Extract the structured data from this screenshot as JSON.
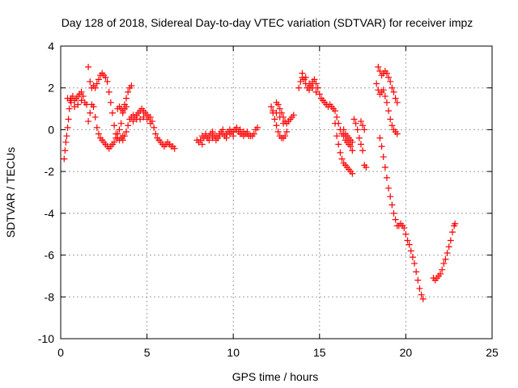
{
  "chart_data": {
    "type": "scatter",
    "title": "Day 128 of 2018, Sidereal Day-to-day VTEC variation (SDTVAR) for receiver impz",
    "xlabel": "GPS time / hours",
    "ylabel": "SDTVAR / TECUs",
    "xlim": [
      0,
      25
    ],
    "ylim": [
      -10,
      4
    ],
    "xticks": [
      "0",
      "5",
      "10",
      "15",
      "20",
      "25"
    ],
    "yticks": [
      "-10",
      "-8",
      "-6",
      "-4",
      "-2",
      "0",
      "2",
      "4"
    ],
    "grid": true,
    "marker": "plus",
    "color": "#ff0000",
    "series": [
      {
        "name": "SDTVAR",
        "points": [
          [
            0.2,
            -1.4
          ],
          [
            0.25,
            -1.0
          ],
          [
            0.3,
            -0.6
          ],
          [
            0.35,
            -0.3
          ],
          [
            0.4,
            0.1
          ],
          [
            0.45,
            0.5
          ],
          [
            0.5,
            1.0
          ],
          [
            0.55,
            1.4
          ],
          [
            0.6,
            1.5
          ],
          [
            0.7,
            1.6
          ],
          [
            0.8,
            1.4
          ],
          [
            0.9,
            1.5
          ],
          [
            1.0,
            1.6
          ],
          [
            1.1,
            1.7
          ],
          [
            1.2,
            1.8
          ],
          [
            1.3,
            1.6
          ],
          [
            1.4,
            1.3
          ],
          [
            1.5,
            1.2
          ],
          [
            0.4,
            1.5
          ],
          [
            0.6,
            1.3
          ],
          [
            0.8,
            1.1
          ],
          [
            1.0,
            1.2
          ],
          [
            1.2,
            1.4
          ],
          [
            1.6,
            3.0
          ],
          [
            1.7,
            2.3
          ],
          [
            1.8,
            2.0
          ],
          [
            1.9,
            2.1
          ],
          [
            2.0,
            2.0
          ],
          [
            2.1,
            2.2
          ],
          [
            2.2,
            2.4
          ],
          [
            2.3,
            2.6
          ],
          [
            2.4,
            2.7
          ],
          [
            2.5,
            2.6
          ],
          [
            2.6,
            2.5
          ],
          [
            2.7,
            2.3
          ],
          [
            2.8,
            1.8
          ],
          [
            2.9,
            1.3
          ],
          [
            3.0,
            0.8
          ],
          [
            3.1,
            0.2
          ],
          [
            3.2,
            -0.2
          ],
          [
            3.3,
            -0.4
          ],
          [
            3.4,
            -0.5
          ],
          [
            3.5,
            -0.4
          ],
          [
            3.6,
            -0.3
          ],
          [
            1.6,
            0.4
          ],
          [
            1.7,
            0.8
          ],
          [
            1.8,
            1.2
          ],
          [
            1.9,
            1.1
          ],
          [
            2.0,
            0.6
          ],
          [
            2.1,
            0.1
          ],
          [
            2.2,
            -0.2
          ],
          [
            2.3,
            -0.4
          ],
          [
            2.4,
            -0.5
          ],
          [
            2.5,
            -0.6
          ],
          [
            2.6,
            -0.7
          ],
          [
            2.7,
            -0.8
          ],
          [
            2.8,
            -0.9
          ],
          [
            2.9,
            -0.8
          ],
          [
            3.0,
            -0.7
          ],
          [
            3.1,
            -0.6
          ],
          [
            3.2,
            -0.4
          ],
          [
            3.3,
            -0.2
          ],
          [
            3.4,
            0.0
          ],
          [
            3.3,
            1.0
          ],
          [
            3.4,
            1.1
          ],
          [
            3.5,
            1.0
          ],
          [
            3.6,
            0.9
          ],
          [
            3.7,
            1.0
          ],
          [
            3.8,
            1.1
          ],
          [
            3.5,
            0.3
          ],
          [
            3.6,
            0.8
          ],
          [
            3.7,
            1.2
          ],
          [
            3.8,
            1.5
          ],
          [
            3.9,
            1.8
          ],
          [
            4.0,
            2.0
          ],
          [
            4.1,
            2.1
          ],
          [
            3.6,
            -0.5
          ],
          [
            3.7,
            -0.3
          ],
          [
            3.8,
            -0.1
          ],
          [
            3.9,
            0.2
          ],
          [
            4.0,
            0.5
          ],
          [
            4.1,
            0.6
          ],
          [
            4.2,
            0.7
          ],
          [
            4.3,
            0.6
          ],
          [
            4.4,
            0.7
          ],
          [
            4.5,
            0.8
          ],
          [
            4.6,
            0.9
          ],
          [
            4.7,
            1.0
          ],
          [
            4.8,
            0.9
          ],
          [
            4.9,
            0.8
          ],
          [
            5.0,
            0.7
          ],
          [
            5.1,
            0.6
          ],
          [
            5.2,
            0.6
          ],
          [
            5.3,
            0.4
          ],
          [
            5.4,
            0.1
          ],
          [
            5.5,
            -0.2
          ],
          [
            5.6,
            -0.4
          ],
          [
            5.7,
            -0.5
          ],
          [
            5.8,
            -0.6
          ],
          [
            5.9,
            -0.7
          ],
          [
            6.0,
            -0.8
          ],
          [
            6.1,
            -0.7
          ],
          [
            6.2,
            -0.6
          ],
          [
            6.3,
            -0.7
          ],
          [
            6.4,
            -0.8
          ],
          [
            6.5,
            -0.8
          ],
          [
            6.6,
            -0.9
          ],
          [
            4.2,
            0.4
          ],
          [
            4.4,
            0.5
          ],
          [
            4.6,
            0.5
          ],
          [
            4.8,
            0.6
          ],
          [
            5.0,
            0.5
          ],
          [
            5.2,
            0.3
          ],
          [
            7.9,
            -0.5
          ],
          [
            8.0,
            -0.6
          ],
          [
            8.1,
            -0.5
          ],
          [
            8.2,
            -0.7
          ],
          [
            8.3,
            -0.4
          ],
          [
            8.4,
            -0.3
          ],
          [
            8.5,
            -0.4
          ],
          [
            8.6,
            -0.3
          ],
          [
            8.7,
            -0.2
          ],
          [
            8.8,
            -0.4
          ],
          [
            8.9,
            -0.3
          ],
          [
            9.0,
            -0.3
          ],
          [
            9.1,
            -0.4
          ],
          [
            9.2,
            -0.2
          ],
          [
            9.3,
            -0.1
          ],
          [
            9.4,
            -0.2
          ],
          [
            9.5,
            -0.3
          ],
          [
            9.6,
            -0.2
          ],
          [
            9.7,
            -0.1
          ],
          [
            9.8,
            -0.2
          ],
          [
            9.9,
            -0.1
          ],
          [
            10.0,
            -0.1
          ],
          [
            10.1,
            0.0
          ],
          [
            10.2,
            0.0
          ],
          [
            10.3,
            -0.1
          ],
          [
            10.4,
            -0.2
          ],
          [
            10.5,
            -0.2
          ],
          [
            10.6,
            -0.1
          ],
          [
            10.7,
            -0.2
          ],
          [
            10.8,
            -0.2
          ],
          [
            10.9,
            -0.3
          ],
          [
            11.0,
            -0.3
          ],
          [
            11.1,
            -0.3
          ],
          [
            11.2,
            -0.2
          ],
          [
            11.3,
            0.0
          ],
          [
            11.4,
            0.1
          ],
          [
            8.2,
            -0.3
          ],
          [
            8.4,
            -0.2
          ],
          [
            8.6,
            -0.5
          ],
          [
            8.8,
            -0.1
          ],
          [
            9.0,
            -0.5
          ],
          [
            9.2,
            -0.3
          ],
          [
            9.4,
            0.0
          ],
          [
            9.6,
            -0.4
          ],
          [
            9.8,
            0.0
          ],
          [
            10.0,
            -0.3
          ],
          [
            10.2,
            0.1
          ],
          [
            10.4,
            0.0
          ],
          [
            10.6,
            -0.3
          ],
          [
            10.8,
            -0.1
          ],
          [
            12.2,
            1.1
          ],
          [
            12.3,
            0.8
          ],
          [
            12.4,
            0.5
          ],
          [
            12.5,
            0.2
          ],
          [
            12.6,
            -0.1
          ],
          [
            12.7,
            -0.3
          ],
          [
            12.8,
            -0.4
          ],
          [
            12.9,
            -0.4
          ],
          [
            13.0,
            -0.3
          ],
          [
            13.1,
            -0.1
          ],
          [
            12.5,
            1.3
          ],
          [
            12.6,
            1.2
          ],
          [
            12.7,
            1.0
          ],
          [
            12.8,
            0.8
          ],
          [
            12.9,
            0.6
          ],
          [
            13.0,
            0.4
          ],
          [
            13.1,
            0.3
          ],
          [
            13.2,
            0.4
          ],
          [
            13.3,
            0.5
          ],
          [
            13.4,
            0.6
          ],
          [
            13.5,
            0.7
          ],
          [
            12.3,
            0.9
          ],
          [
            12.5,
            0.8
          ],
          [
            12.7,
            0.6
          ],
          [
            12.9,
            0.3
          ],
          [
            13.8,
            2.0
          ],
          [
            13.9,
            2.3
          ],
          [
            14.0,
            2.5
          ],
          [
            14.1,
            2.4
          ],
          [
            14.2,
            2.2
          ],
          [
            14.3,
            2.0
          ],
          [
            14.4,
            1.9
          ],
          [
            14.5,
            2.1
          ],
          [
            14.6,
            2.3
          ],
          [
            14.7,
            2.4
          ],
          [
            14.8,
            2.2
          ],
          [
            14.9,
            2.0
          ],
          [
            15.0,
            1.7
          ],
          [
            15.1,
            1.5
          ],
          [
            15.2,
            1.4
          ],
          [
            15.3,
            1.3
          ],
          [
            15.4,
            1.2
          ],
          [
            15.5,
            1.1
          ],
          [
            15.6,
            1.2
          ],
          [
            15.7,
            1.1
          ],
          [
            15.8,
            1.0
          ],
          [
            15.9,
            0.9
          ],
          [
            16.0,
            0.6
          ],
          [
            16.1,
            0.3
          ],
          [
            16.2,
            0.0
          ],
          [
            16.3,
            -0.2
          ],
          [
            16.4,
            -0.3
          ],
          [
            16.5,
            -0.5
          ],
          [
            16.6,
            -0.6
          ],
          [
            16.7,
            -0.7
          ],
          [
            16.8,
            -0.8
          ],
          [
            16.9,
            -1.0
          ],
          [
            14.0,
            2.7
          ],
          [
            14.2,
            2.5
          ],
          [
            14.4,
            2.2
          ],
          [
            14.6,
            2.0
          ],
          [
            14.8,
            1.8
          ],
          [
            15.9,
            0.3
          ],
          [
            16.0,
            -0.3
          ],
          [
            16.1,
            -0.7
          ],
          [
            16.2,
            -1.1
          ],
          [
            16.3,
            -1.4
          ],
          [
            16.4,
            -1.6
          ],
          [
            16.5,
            -1.7
          ],
          [
            16.6,
            -1.8
          ],
          [
            16.7,
            -1.9
          ],
          [
            16.8,
            -2.0
          ],
          [
            16.9,
            -2.1
          ],
          [
            16.4,
            0.0
          ],
          [
            16.5,
            -0.2
          ],
          [
            16.6,
            -0.3
          ],
          [
            16.7,
            -0.4
          ],
          [
            16.8,
            -0.5
          ],
          [
            16.9,
            -0.6
          ],
          [
            17.0,
            0.5
          ],
          [
            17.1,
            0.3
          ],
          [
            17.2,
            0.0
          ],
          [
            17.3,
            -0.4
          ],
          [
            17.4,
            -0.7
          ],
          [
            17.5,
            -1.0
          ],
          [
            17.4,
            0.4
          ],
          [
            17.5,
            0.2
          ],
          [
            17.6,
            0.0
          ],
          [
            17.6,
            -1.7
          ],
          [
            17.7,
            -1.8
          ],
          [
            18.4,
            3.0
          ],
          [
            18.5,
            2.8
          ],
          [
            18.6,
            2.6
          ],
          [
            18.7,
            2.7
          ],
          [
            18.8,
            2.8
          ],
          [
            18.9,
            2.7
          ],
          [
            19.0,
            2.5
          ],
          [
            19.1,
            2.3
          ],
          [
            19.2,
            2.0
          ],
          [
            19.3,
            1.8
          ],
          [
            19.4,
            1.5
          ],
          [
            19.5,
            1.3
          ],
          [
            18.3,
            2.2
          ],
          [
            18.4,
            1.9
          ],
          [
            18.5,
            1.7
          ],
          [
            18.6,
            1.8
          ],
          [
            18.7,
            1.9
          ],
          [
            18.8,
            1.6
          ],
          [
            18.9,
            1.3
          ],
          [
            19.0,
            0.9
          ],
          [
            19.1,
            0.5
          ],
          [
            19.2,
            0.2
          ],
          [
            19.3,
            0.0
          ],
          [
            19.4,
            -0.1
          ],
          [
            19.5,
            -0.2
          ],
          [
            18.5,
            -0.4
          ],
          [
            18.6,
            -0.8
          ],
          [
            18.7,
            -1.3
          ],
          [
            18.8,
            -1.8
          ],
          [
            18.9,
            -2.3
          ],
          [
            19.0,
            -2.8
          ],
          [
            19.1,
            -3.2
          ],
          [
            19.2,
            -3.6
          ],
          [
            19.3,
            -4.0
          ],
          [
            19.4,
            -4.3
          ],
          [
            19.5,
            -4.6
          ],
          [
            19.6,
            -4.6
          ],
          [
            19.7,
            -4.5
          ],
          [
            19.8,
            -4.6
          ],
          [
            19.9,
            -4.7
          ],
          [
            20.0,
            -5.0
          ],
          [
            20.1,
            -5.3
          ],
          [
            20.2,
            -5.5
          ],
          [
            20.3,
            -5.8
          ],
          [
            20.4,
            -6.1
          ],
          [
            20.5,
            -6.4
          ],
          [
            20.6,
            -6.8
          ],
          [
            20.7,
            -7.2
          ],
          [
            20.8,
            -7.6
          ],
          [
            20.9,
            -7.9
          ],
          [
            21.0,
            -8.1
          ],
          [
            21.6,
            -7.1
          ],
          [
            21.7,
            -7.2
          ],
          [
            21.8,
            -7.1
          ],
          [
            21.9,
            -7.0
          ],
          [
            22.0,
            -6.9
          ],
          [
            22.1,
            -6.7
          ],
          [
            22.2,
            -6.4
          ],
          [
            22.3,
            -6.2
          ],
          [
            22.4,
            -5.9
          ],
          [
            22.5,
            -5.6
          ],
          [
            22.6,
            -5.3
          ],
          [
            22.7,
            -4.9
          ],
          [
            22.8,
            -4.6
          ],
          [
            22.85,
            -4.5
          ]
        ]
      }
    ]
  }
}
